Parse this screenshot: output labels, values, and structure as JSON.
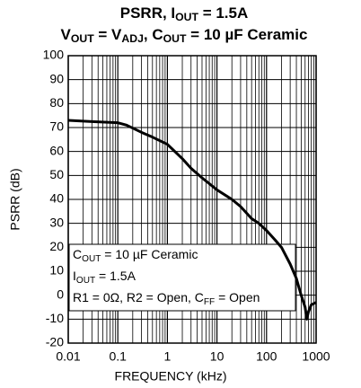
{
  "chart_data": {
    "type": "line",
    "title": [
      [
        "PSRR, I",
        "OUT",
        " = 1.5A"
      ],
      [
        "V",
        "OUT",
        " = V",
        "ADJ",
        ", C",
        "OUT",
        " = 10 µF Ceramic"
      ]
    ],
    "xlabel": "FREQUENCY (kHz)",
    "ylabel": "PSRR (dB)",
    "annotation": [
      [
        "C",
        "OUT",
        " = 10 µF Ceramic"
      ],
      [
        "I",
        "OUT",
        " = 1.5A"
      ],
      [
        "R1 = 0Ω, R2 = Open, C",
        "FF",
        " = Open"
      ]
    ],
    "xscale": "log",
    "xlim": [
      0.01,
      1000
    ],
    "xticks": [
      0.01,
      0.1,
      1,
      10,
      100,
      1000
    ],
    "ylim": [
      -20,
      100
    ],
    "yticks": [
      -20,
      -10,
      0,
      10,
      20,
      30,
      40,
      50,
      60,
      70,
      80,
      90,
      100
    ],
    "grid": true,
    "minor_grid": true,
    "series": [
      {
        "color": "#000000",
        "x": [
          0.01,
          0.03,
          0.1,
          0.15,
          0.3,
          0.5,
          1,
          2,
          3,
          5,
          10,
          20,
          30,
          50,
          70,
          100,
          150,
          200,
          300,
          400,
          500,
          600,
          650,
          700,
          800,
          1000
        ],
        "values": [
          73,
          72.5,
          72,
          71,
          68,
          66,
          63,
          57,
          53,
          49,
          44,
          40,
          37,
          32,
          30,
          27,
          23,
          20,
          13,
          7,
          0,
          -5,
          -10,
          -7,
          -4,
          -3
        ]
      }
    ]
  }
}
